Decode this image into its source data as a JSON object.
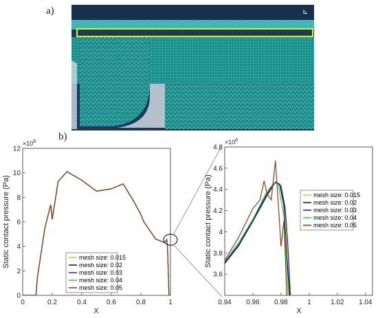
{
  "figure": {
    "panel_a": "a)",
    "panel_b": "b)"
  },
  "chart_data": [
    {
      "type": "line",
      "xlabel": "X",
      "ylabel": "Static contact pressure (Pa)",
      "multiplier_label": "×10",
      "multiplier_exp": "6",
      "xlim": [
        0,
        1.0
      ],
      "ylim": [
        0,
        12
      ],
      "xticks": [
        "0",
        "0.2",
        "0.4",
        "0.6",
        "0.8",
        "1"
      ],
      "yticks": [
        "0",
        "2",
        "4",
        "6",
        "8",
        "10",
        "12"
      ],
      "legend_position": "lower-center",
      "series": [
        {
          "name": "mesh size: 0.015",
          "color": "#e8b830"
        },
        {
          "name": "mesh size: 0.02",
          "color": "#111111"
        },
        {
          "name": "mesh size: 0.03",
          "color": "#1a1acc"
        },
        {
          "name": "mesh size: 0.04",
          "color": "#33cc33"
        },
        {
          "name": "mesh size: 0.05",
          "color": "#8b3a1a"
        }
      ],
      "x": [
        0,
        0.09,
        0.1,
        0.15,
        0.19,
        0.2,
        0.24,
        0.3,
        0.4,
        0.5,
        0.6,
        0.68,
        0.75,
        0.8,
        0.82,
        0.9,
        0.96,
        0.975,
        0.98,
        0.985,
        0.99,
        1.0
      ],
      "y": [
        0,
        0,
        1.5,
        5.5,
        7.4,
        6.2,
        9.3,
        10.1,
        9.4,
        8.5,
        8.7,
        9.1,
        7.7,
        6.6,
        6.0,
        4.6,
        4.3,
        4.55,
        4.0,
        2.0,
        0,
        0
      ]
    },
    {
      "type": "line",
      "xlabel": "X",
      "ylabel": "Static contact pressure (Pa)",
      "multiplier_label": "×10",
      "multiplier_exp": "6",
      "xlim": [
        0.94,
        1.045
      ],
      "ylim": [
        3.4,
        4.8
      ],
      "xticks": [
        "0.94",
        "0.96",
        "0.98",
        "1",
        "1.02",
        "1.04"
      ],
      "yticks": [
        "3.6",
        "3.8",
        "4",
        "4.2",
        "4.4",
        "4.6",
        "4.8"
      ],
      "legend_position": "right-middle",
      "series": [
        {
          "name": "mesh size: 0.015",
          "color": "#e8b830",
          "x": [
            0.94,
            0.95,
            0.96,
            0.97,
            0.976,
            0.98,
            0.983,
            0.985,
            0.987
          ],
          "y": [
            3.7,
            3.88,
            4.1,
            4.35,
            4.47,
            4.44,
            4.2,
            3.8,
            3.4
          ]
        },
        {
          "name": "mesh size: 0.02",
          "color": "#111111",
          "x": [
            0.94,
            0.95,
            0.96,
            0.97,
            0.976,
            0.979,
            0.982,
            0.984,
            0.986
          ],
          "y": [
            3.7,
            3.87,
            4.1,
            4.34,
            4.47,
            4.45,
            4.25,
            3.8,
            3.4
          ]
        },
        {
          "name": "mesh size: 0.03",
          "color": "#1a1acc",
          "x": [
            0.94,
            0.95,
            0.96,
            0.97,
            0.976,
            0.98,
            0.983,
            0.985,
            0.9865
          ],
          "y": [
            3.71,
            3.88,
            4.11,
            4.36,
            4.47,
            4.43,
            4.22,
            3.85,
            3.4
          ]
        },
        {
          "name": "mesh size: 0.04",
          "color": "#33cc33",
          "x": [
            0.94,
            0.95,
            0.96,
            0.97,
            0.975,
            0.978,
            0.982,
            0.984,
            0.985
          ],
          "y": [
            3.72,
            3.9,
            4.12,
            4.38,
            4.46,
            4.45,
            4.15,
            3.7,
            3.4
          ]
        },
        {
          "name": "mesh size: 0.05",
          "color": "#8b3a1a",
          "x": [
            0.94,
            0.95,
            0.96,
            0.965,
            0.968,
            0.97,
            0.973,
            0.976,
            0.978,
            0.98,
            0.982,
            0.983,
            0.984
          ],
          "y": [
            3.73,
            3.95,
            4.22,
            4.3,
            4.48,
            4.36,
            4.3,
            4.67,
            4.28,
            3.86,
            4.1,
            3.8,
            3.4
          ]
        }
      ]
    }
  ]
}
